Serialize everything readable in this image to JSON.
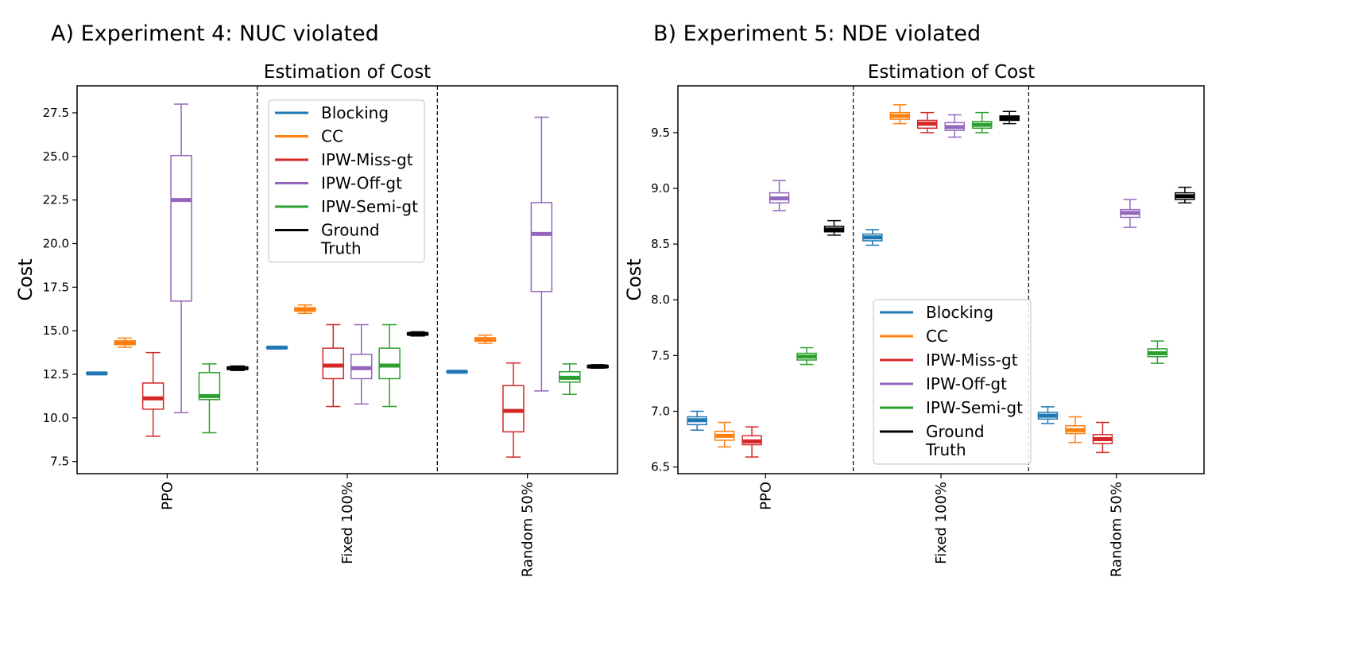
{
  "panels": [
    {
      "panel_title": "A) Experiment 4: NUC violated",
      "chart_title": "Estimation of Cost",
      "ylabel": "Cost",
      "ylim": [
        6.8,
        29.05
      ],
      "yticks": [
        "7.5",
        "10.0",
        "12.5",
        "15.0",
        "17.5",
        "20.0",
        "22.5",
        "25.0",
        "27.5"
      ],
      "legend_position": "top-center"
    },
    {
      "panel_title": "B) Experiment 5: NDE violated",
      "chart_title": "Estimation of Cost",
      "ylabel": "Cost",
      "ylim": [
        6.44,
        9.92
      ],
      "yticks": [
        "6.5",
        "7.0",
        "7.5",
        "8.0",
        "8.5",
        "9.0",
        "9.5"
      ],
      "legend_position": "lower-center"
    }
  ],
  "legend": {
    "entries": [
      "Blocking",
      "CC",
      "IPW-Miss-gt",
      "IPW-Off-gt",
      "IPW-Semi-gt",
      "Ground\nTruth"
    ],
    "colors": [
      "#1f77b4",
      "#ff7f0e",
      "#d62728",
      "#9467bd",
      "#2ca02c",
      "#000000"
    ]
  },
  "chart_data": [
    {
      "type": "boxplot",
      "title": "Estimation of Cost",
      "xlabel": "",
      "ylabel": "Cost",
      "categories": [
        "PPO",
        "Fixed 100%",
        "Random 50%"
      ],
      "ylim": [
        6.8,
        29.05
      ],
      "series": [
        {
          "name": "Blocking",
          "color": "#1f77b4",
          "boxes": [
            {
              "whislo": 12.5,
              "q1": 12.52,
              "med": 12.55,
              "q3": 12.58,
              "whishi": 12.6
            },
            {
              "whislo": 13.98,
              "q1": 14.0,
              "med": 14.03,
              "q3": 14.06,
              "whishi": 14.08
            },
            {
              "whislo": 12.6,
              "q1": 12.62,
              "med": 12.65,
              "q3": 12.68,
              "whishi": 12.7
            }
          ]
        },
        {
          "name": "CC",
          "color": "#ff7f0e",
          "boxes": [
            {
              "whislo": 14.05,
              "q1": 14.2,
              "med": 14.32,
              "q3": 14.42,
              "whishi": 14.58
            },
            {
              "whislo": 16.0,
              "q1": 16.12,
              "med": 16.22,
              "q3": 16.32,
              "whishi": 16.48
            },
            {
              "whislo": 14.28,
              "q1": 14.4,
              "med": 14.5,
              "q3": 14.6,
              "whishi": 14.75
            }
          ]
        },
        {
          "name": "IPW-Miss-gt",
          "color": "#d62728",
          "boxes": [
            {
              "whislo": 8.95,
              "q1": 10.5,
              "med": 11.12,
              "q3": 12.0,
              "whishi": 13.75
            },
            {
              "whislo": 10.65,
              "q1": 12.25,
              "med": 13.0,
              "q3": 14.0,
              "whishi": 15.35
            },
            {
              "whislo": 7.75,
              "q1": 9.2,
              "med": 10.4,
              "q3": 11.85,
              "whishi": 13.15
            }
          ]
        },
        {
          "name": "IPW-Off-gt",
          "color": "#9467bd",
          "boxes": [
            {
              "whislo": 10.3,
              "q1": 16.7,
              "med": 22.5,
              "q3": 25.05,
              "whishi": 28.0
            },
            {
              "whislo": 10.8,
              "q1": 12.25,
              "med": 12.85,
              "q3": 13.65,
              "whishi": 15.35
            },
            {
              "whislo": 11.55,
              "q1": 17.25,
              "med": 20.55,
              "q3": 22.35,
              "whishi": 27.25
            }
          ]
        },
        {
          "name": "IPW-Semi-gt",
          "color": "#2ca02c",
          "boxes": [
            {
              "whislo": 9.15,
              "q1": 11.05,
              "med": 11.25,
              "q3": 12.6,
              "whishi": 13.1
            },
            {
              "whislo": 10.65,
              "q1": 12.25,
              "med": 13.0,
              "q3": 14.0,
              "whishi": 15.35
            },
            {
              "whislo": 11.35,
              "q1": 12.05,
              "med": 12.3,
              "q3": 12.65,
              "whishi": 13.1
            }
          ]
        },
        {
          "name": "Ground Truth",
          "color": "#000000",
          "boxes": [
            {
              "whislo": 12.72,
              "q1": 12.78,
              "med": 12.85,
              "q3": 12.92,
              "whishi": 12.98
            },
            {
              "whislo": 14.7,
              "q1": 14.76,
              "med": 14.82,
              "q3": 14.88,
              "whishi": 14.94
            },
            {
              "whislo": 12.85,
              "q1": 12.89,
              "med": 12.95,
              "q3": 13.0,
              "whishi": 13.05
            }
          ]
        }
      ]
    },
    {
      "type": "boxplot",
      "title": "Estimation of Cost",
      "xlabel": "",
      "ylabel": "Cost",
      "categories": [
        "PPO",
        "Fixed 100%",
        "Random 50%"
      ],
      "ylim": [
        6.44,
        9.92
      ],
      "series": [
        {
          "name": "Blocking",
          "color": "#1f77b4",
          "boxes": [
            {
              "whislo": 6.83,
              "q1": 6.88,
              "med": 6.92,
              "q3": 6.95,
              "whishi": 7.0
            },
            {
              "whislo": 8.49,
              "q1": 8.53,
              "med": 8.56,
              "q3": 8.59,
              "whishi": 8.63
            },
            {
              "whislo": 6.89,
              "q1": 6.93,
              "med": 6.96,
              "q3": 6.99,
              "whishi": 7.04
            }
          ]
        },
        {
          "name": "CC",
          "color": "#ff7f0e",
          "boxes": [
            {
              "whislo": 6.68,
              "q1": 6.74,
              "med": 6.78,
              "q3": 6.82,
              "whishi": 6.9
            },
            {
              "whislo": 9.58,
              "q1": 9.62,
              "med": 9.65,
              "q3": 9.68,
              "whishi": 9.75
            },
            {
              "whislo": 6.72,
              "q1": 6.8,
              "med": 6.83,
              "q3": 6.87,
              "whishi": 6.95
            }
          ]
        },
        {
          "name": "IPW-Miss-gt",
          "color": "#d62728",
          "boxes": [
            {
              "whislo": 6.59,
              "q1": 6.7,
              "med": 6.73,
              "q3": 6.78,
              "whishi": 6.86
            },
            {
              "whislo": 9.5,
              "q1": 9.54,
              "med": 9.58,
              "q3": 9.61,
              "whishi": 9.68
            },
            {
              "whislo": 6.63,
              "q1": 6.71,
              "med": 6.75,
              "q3": 6.79,
              "whishi": 6.9
            }
          ]
        },
        {
          "name": "IPW-Off-gt",
          "color": "#9467bd",
          "boxes": [
            {
              "whislo": 8.8,
              "q1": 8.87,
              "med": 8.91,
              "q3": 8.96,
              "whishi": 9.07
            },
            {
              "whislo": 9.46,
              "q1": 9.52,
              "med": 9.55,
              "q3": 9.59,
              "whishi": 9.66
            },
            {
              "whislo": 8.65,
              "q1": 8.74,
              "med": 8.78,
              "q3": 8.81,
              "whishi": 8.9
            }
          ]
        },
        {
          "name": "IPW-Semi-gt",
          "color": "#2ca02c",
          "boxes": [
            {
              "whislo": 7.42,
              "q1": 7.46,
              "med": 7.49,
              "q3": 7.52,
              "whishi": 7.57
            },
            {
              "whislo": 9.5,
              "q1": 9.54,
              "med": 9.57,
              "q3": 9.6,
              "whishi": 9.68
            },
            {
              "whislo": 7.43,
              "q1": 7.49,
              "med": 7.52,
              "q3": 7.56,
              "whishi": 7.63
            }
          ]
        },
        {
          "name": "Ground Truth",
          "color": "#000000",
          "boxes": [
            {
              "whislo": 8.58,
              "q1": 8.61,
              "med": 8.63,
              "q3": 8.66,
              "whishi": 8.71
            },
            {
              "whislo": 9.58,
              "q1": 9.61,
              "med": 9.63,
              "q3": 9.65,
              "whishi": 9.69
            },
            {
              "whislo": 8.87,
              "q1": 8.9,
              "med": 8.93,
              "q3": 8.96,
              "whishi": 9.01
            }
          ]
        }
      ]
    }
  ]
}
